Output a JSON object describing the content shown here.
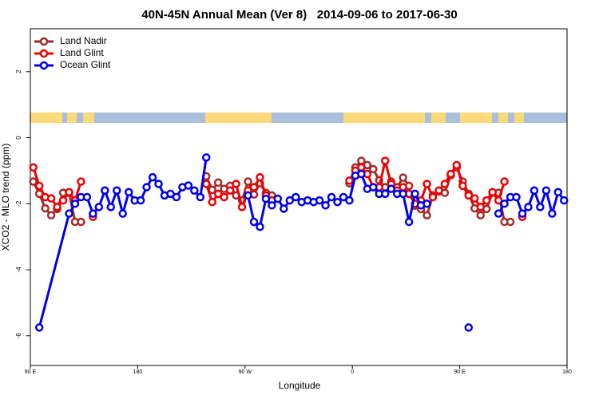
{
  "chart_data": {
    "type": "line",
    "title": "40N-45N Annual Mean (Ver 8)   2014-09-06 to 2017-06-30",
    "x_label": "Longitude",
    "y_label": "XCO2 - MLO trend (ppm)",
    "xlim": [
      90,
      540
    ],
    "ylim": [
      -6.9,
      3.3
    ],
    "xticks": [
      {
        "value": 90,
        "label": "90 E"
      },
      180,
      {
        "value": 270,
        "label": "90 W"
      },
      {
        "value": 360,
        "label": "0"
      },
      {
        "value": 450,
        "label": "90 E"
      },
      {
        "value": 540,
        "label": "180"
      }
    ],
    "yticks": [
      -6,
      -4,
      -2,
      0,
      2
    ],
    "legend": "top-left",
    "series": [
      {
        "name": "Land Nadir",
        "color": "#a52a2a",
        "x": [
          92.5,
          97.5,
          102.5,
          107.5,
          112.5,
          117.5,
          122.5,
          127.5,
          132.5,
          185,
          237.5,
          242.5,
          247.5,
          252.5,
          257.5,
          262.5,
          267.5,
          272.5,
          277.5,
          282.5,
          287.5,
          292.5,
          325,
          357.5,
          362.5,
          367.5,
          372.5,
          377.5,
          382.5,
          387.5,
          392.5,
          397.5,
          402.5,
          407.5,
          412.5,
          417.5,
          422.5,
          427.5,
          432.5,
          437.5,
          442.5,
          447.5,
          452.5,
          457.5,
          462.5,
          467.5,
          472.5,
          477.5,
          482.5,
          487.5,
          492.5
        ],
        "values": [
          -1.33,
          -1.7,
          -2.14,
          -2.35,
          -2.16,
          -1.67,
          -1.67,
          -2.55,
          -2.55,
          null,
          -1.17,
          -1.58,
          -1.36,
          -1.55,
          -1.46,
          -1.75,
          -1.9,
          -1.33,
          -1.72,
          -1.38,
          -1.67,
          -1.75,
          null,
          -1.38,
          -0.9,
          -0.7,
          -0.83,
          -0.95,
          -1.29,
          -1.5,
          -1.33,
          -1.5,
          -1.21,
          -1.46,
          -2.06,
          -2.16,
          -2.35,
          -1.75,
          -1.63,
          -1.67,
          -1.14,
          -0.9,
          -1.33,
          -1.7,
          -2.14,
          -2.35,
          -2.16,
          -1.67,
          -1.67,
          -2.55,
          -2.55
        ]
      },
      {
        "name": "Land Glint",
        "color": "#ee0000",
        "x": [
          92.5,
          97.5,
          102.5,
          107.5,
          112.5,
          117.5,
          122.5,
          127.5,
          132.5,
          137.5,
          142.5,
          185,
          237.5,
          242.5,
          247.5,
          252.5,
          257.5,
          262.5,
          267.5,
          272.5,
          277.5,
          282.5,
          287.5,
          292.5,
          325,
          357.5,
          362.5,
          367.5,
          372.5,
          377.5,
          382.5,
          387.5,
          392.5,
          397.5,
          402.5,
          407.5,
          412.5,
          417.5,
          422.5,
          427.5,
          432.5,
          437.5,
          442.5,
          447.5,
          452.5,
          457.5,
          462.5,
          467.5,
          472.5,
          477.5,
          482.5,
          487.5,
          495,
          502.5
        ],
        "values": [
          -0.9,
          -1.46,
          -1.8,
          -1.84,
          -2.1,
          -1.9,
          -1.65,
          -1.9,
          -1.33,
          null,
          -2.4,
          null,
          -1.4,
          -1.95,
          -1.7,
          -1.8,
          -1.6,
          -1.4,
          -2.1,
          -1.6,
          -1.5,
          -1.2,
          -1.75,
          -1.9,
          null,
          -1.3,
          -1.0,
          -0.9,
          -1.1,
          -1.5,
          -1.5,
          -0.7,
          -1.4,
          -1.6,
          -1.5,
          -1.7,
          -2.0,
          -1.9,
          -1.4,
          -1.8,
          -1.6,
          -1.4,
          -1.1,
          -0.83,
          -1.46,
          -1.75,
          -1.84,
          -2.1,
          -1.9,
          -1.65,
          -1.9,
          -1.33,
          null,
          -2.4
        ]
      },
      {
        "name": "Ocean Glint",
        "color": "#0000ee",
        "x": [
          97.5,
          122.5,
          127.5,
          132.5,
          137.5,
          142.5,
          147.5,
          152.5,
          157.5,
          162.5,
          167.5,
          172.5,
          177.5,
          182.5,
          187.5,
          192.5,
          197.5,
          202.5,
          207.5,
          212.5,
          217.5,
          222.5,
          227.5,
          232.5,
          237.5,
          255,
          272.5,
          277.5,
          282.5,
          287.5,
          292.5,
          297.5,
          302.5,
          307.5,
          312.5,
          317.5,
          322.5,
          327.5,
          332.5,
          337.5,
          342.5,
          347.5,
          352.5,
          357.5,
          362.5,
          367.5,
          372.5,
          377.5,
          382.5,
          387.5,
          392.5,
          397.5,
          402.5,
          407.5,
          412.5,
          417.5,
          422.5,
          440,
          457.5,
          470,
          482.5,
          487.5,
          492.5,
          497.5,
          502.5,
          507.5,
          512.5,
          517.5,
          522.5,
          527.5,
          532.5,
          537.5
        ],
        "values": [
          -5.75,
          -2.3,
          -2.0,
          -1.8,
          -1.8,
          -2.3,
          -2.1,
          -1.6,
          -2.1,
          -1.6,
          -2.3,
          -1.65,
          -1.9,
          -1.9,
          -1.5,
          -1.2,
          -1.4,
          -1.75,
          -1.7,
          -1.8,
          -1.5,
          -1.45,
          -1.6,
          -1.8,
          -0.6,
          null,
          -1.75,
          -2.55,
          -2.7,
          -1.85,
          -2.05,
          -1.85,
          -2.15,
          -1.9,
          -1.8,
          -1.95,
          -1.9,
          -1.95,
          -1.9,
          -2.05,
          -1.8,
          -1.95,
          -1.8,
          -1.9,
          -1.15,
          -1.1,
          -1.55,
          -1.5,
          -1.7,
          -1.7,
          -1.55,
          -1.7,
          -1.7,
          -2.55,
          -1.7,
          -2.05,
          -2.0,
          null,
          -5.75,
          null,
          -2.3,
          -2.0,
          -1.8,
          -1.8,
          -2.3,
          -2.1,
          -1.6,
          -2.1,
          -1.6,
          -2.3,
          -1.65,
          -1.9
        ]
      }
    ]
  }
}
